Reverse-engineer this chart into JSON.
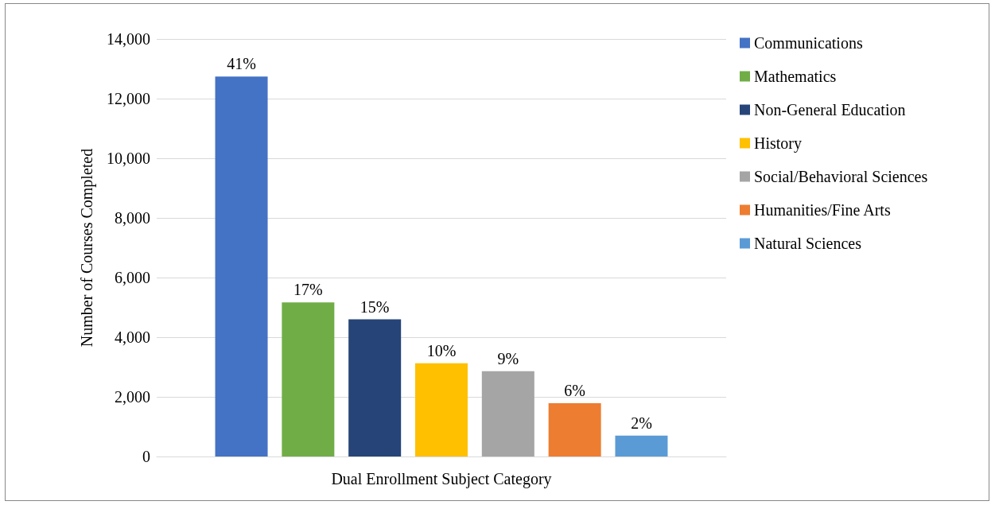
{
  "chart_data": {
    "type": "bar",
    "xlabel": "Dual Enrollment Subject Category",
    "ylabel": "Number of Courses Completed",
    "categories": [
      null
    ],
    "ylim": [
      0,
      14000
    ],
    "yticks": [
      0,
      {
        "value": 2000,
        "label": "2,000"
      },
      {
        "value": 4000,
        "label": "4,000"
      },
      {
        "value": 6000,
        "label": "6,000"
      },
      {
        "value": 8000,
        "label": "8,000"
      },
      {
        "value": 10000,
        "label": "10,000"
      },
      {
        "value": 12000,
        "label": "12,000"
      },
      {
        "value": 14000,
        "label": "14,000"
      }
    ],
    "grid": "y",
    "legend": "right",
    "series": [
      {
        "name": "Communications",
        "color": "#4472c4",
        "values": [
          12740
        ]
      },
      {
        "name": "Mathematics",
        "color": "#70ad47",
        "values": [
          5170
        ]
      },
      {
        "name": "Non-General Education",
        "color": "#264478",
        "values": [
          4600
        ]
      },
      {
        "name": "History",
        "color": "#ffc000",
        "values": [
          3130
        ]
      },
      {
        "name": "Social/Behavioral Sciences",
        "color": "#a5a5a5",
        "values": [
          2860
        ]
      },
      {
        "name": "Humanities/Fine Arts",
        "color": "#ed7d31",
        "values": [
          1790
        ]
      },
      {
        "name": "Natural Sciences",
        "color": "#5b9bd5",
        "values": [
          700
        ]
      }
    ],
    "annotations": [
      {
        "text": "41%",
        "y": 12740
      },
      {
        "text": "17%",
        "y": 5170
      },
      {
        "text": "15%",
        "y": 4600
      },
      {
        "text": "10%",
        "y": 3130
      },
      {
        "text": "9%",
        "y": 2860
      },
      {
        "text": "6%",
        "y": 1790
      },
      {
        "text": "2%",
        "y": 700
      }
    ]
  }
}
